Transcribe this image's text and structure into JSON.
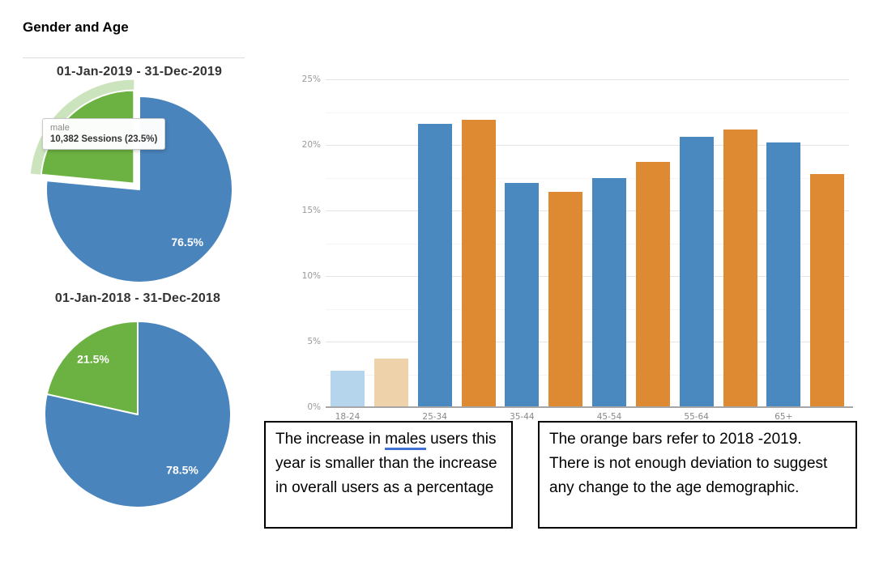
{
  "page": {
    "heading": "Gender and Age"
  },
  "chart_data": [
    {
      "type": "pie",
      "title": "01-Jan-2019 - 31-Dec-2019",
      "slices": [
        {
          "label": "76.5%",
          "value": 76.5,
          "color": "#4a84bc",
          "exploded": false
        },
        {
          "label": "",
          "value": 23.5,
          "color": "#6cb242",
          "exploded": true
        }
      ],
      "tooltip": {
        "line1": "male",
        "line2": "10,382 Sessions (23.5%)"
      },
      "legend": "none"
    },
    {
      "type": "pie",
      "title": "01-Jan-2018 - 31-Dec-2018",
      "slices": [
        {
          "label": "78.5%",
          "value": 78.5,
          "color": "#4a84bc",
          "exploded": false
        },
        {
          "label": "21.5%",
          "value": 21.5,
          "color": "#6cb242",
          "exploded": false
        }
      ],
      "legend": "none"
    },
    {
      "type": "bar",
      "categories": [
        "18-24",
        "25-34",
        "35-44",
        "45-54",
        "55-64",
        "65+"
      ],
      "series": [
        {
          "name": "blue",
          "color": "#4a89c0",
          "faded_color": "#b4d5ec",
          "values": [
            2.8,
            21.6,
            17.1,
            17.5,
            20.6,
            20.2
          ]
        },
        {
          "name": "orange",
          "color": "#dd8a33",
          "faded_color": "#eed3aa",
          "values": [
            3.7,
            21.9,
            16.4,
            18.7,
            21.2,
            17.8
          ]
        }
      ],
      "faded_categories": [
        "18-24"
      ],
      "yticks": [
        "0%",
        "5%",
        "10%",
        "15%",
        "20%",
        "25%"
      ],
      "ylim": [
        0,
        25
      ],
      "grid": "horizontal, major 5% / minor 2.5%",
      "legend": "none"
    }
  ],
  "annotations": {
    "box1": {
      "part1": "The increase in ",
      "underlined": "males",
      "part2": " users this year is smaller than the increase in overall users as a percentage"
    },
    "box2": {
      "text": "The orange bars refer to 2018 -2019. There is not enough deviation to suggest any change to the age demographic."
    }
  }
}
